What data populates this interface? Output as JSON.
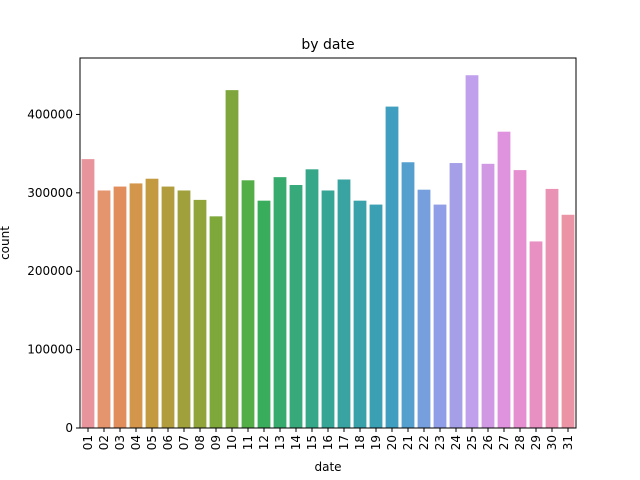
{
  "chart_data": {
    "type": "bar",
    "title": "by date",
    "xlabel": "date",
    "ylabel": "count",
    "ylim": [
      0,
      472000
    ],
    "yticks": [
      0,
      100000,
      200000,
      300000,
      400000
    ],
    "ytick_labels": [
      "0",
      "100000",
      "200000",
      "300000",
      "400000"
    ],
    "grid": false,
    "categories": [
      "01",
      "02",
      "03",
      "04",
      "05",
      "06",
      "07",
      "08",
      "09",
      "10",
      "11",
      "12",
      "13",
      "14",
      "15",
      "16",
      "17",
      "18",
      "19",
      "20",
      "21",
      "22",
      "23",
      "24",
      "25",
      "26",
      "27",
      "28",
      "29",
      "30",
      "31"
    ],
    "values": [
      343000,
      303000,
      308000,
      312000,
      318000,
      308000,
      303000,
      291000,
      270000,
      431000,
      316000,
      290000,
      320000,
      310000,
      330000,
      303000,
      317000,
      290000,
      285000,
      410000,
      339000,
      304000,
      285000,
      338000,
      450000,
      337000,
      378000,
      329000,
      238000,
      305000,
      272000
    ],
    "colors": [
      "#e8949c",
      "#e5956e",
      "#e28e5c",
      "#d3964b",
      "#c39a40",
      "#b19d3e",
      "#a0a03d",
      "#91a43b",
      "#7ea83a",
      "#7ea63c",
      "#54ae47",
      "#39ad5b",
      "#37ab6d",
      "#37a97b",
      "#37a78a",
      "#36a595",
      "#38a3a1",
      "#39a1aa",
      "#3ba0b4",
      "#409fc0",
      "#559fcf",
      "#769fde",
      "#8f9ee7",
      "#a59fe7",
      "#c09fec",
      "#d199e4",
      "#df93de",
      "#e58fd1",
      "#e990c3",
      "#ea92b3",
      "#ea94a5"
    ]
  }
}
